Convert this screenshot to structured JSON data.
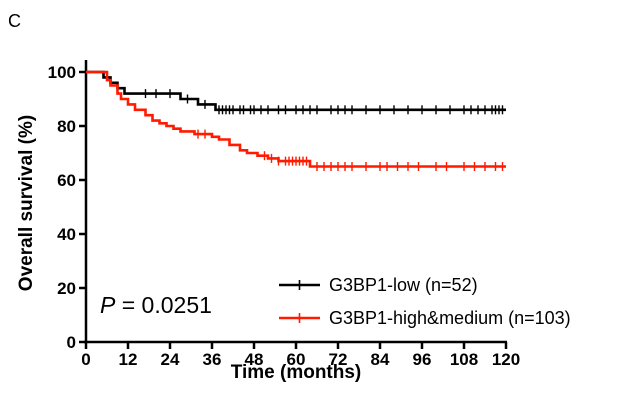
{
  "panel_label": "C",
  "colors": {
    "low": "#000000",
    "high": "#ff1a00",
    "axis": "#000000"
  },
  "chart_data": {
    "type": "line",
    "subtype": "kaplan-meier",
    "title": "",
    "xlabel": "Time (months)",
    "ylabel": "Overall survival (%)",
    "xlim": [
      0,
      120
    ],
    "ylim": [
      0,
      100
    ],
    "xticks": [
      0,
      12,
      24,
      36,
      48,
      60,
      72,
      84,
      96,
      108,
      120
    ],
    "yticks": [
      0,
      20,
      40,
      60,
      80,
      100
    ],
    "grid": false,
    "legend_position": "bottom-right",
    "annotation": {
      "italic": "P",
      "rest": " = 0.0251"
    },
    "series": [
      {
        "name": "G3BP1-low (n=52)",
        "color": "#000000",
        "steps": [
          [
            0,
            100
          ],
          [
            5,
            98
          ],
          [
            7,
            96
          ],
          [
            9,
            94
          ],
          [
            11,
            92
          ],
          [
            27,
            90
          ],
          [
            32,
            88
          ],
          [
            37,
            86
          ],
          [
            120,
            86
          ]
        ],
        "censored": [
          9,
          17,
          20,
          24,
          29,
          34,
          38,
          39,
          40,
          41,
          42,
          44,
          45,
          47,
          48,
          50,
          52,
          55,
          57,
          60,
          62,
          64,
          66,
          70,
          72,
          74,
          76,
          80,
          84,
          88,
          92,
          96,
          100,
          104,
          108,
          110,
          112,
          114,
          116,
          117,
          118,
          119
        ]
      },
      {
        "name": "G3BP1-high&medium (n=103)",
        "color": "#ff1a00",
        "steps": [
          [
            0,
            100
          ],
          [
            6,
            97
          ],
          [
            7,
            95
          ],
          [
            9,
            92
          ],
          [
            10,
            90
          ],
          [
            12,
            88
          ],
          [
            14,
            86
          ],
          [
            17,
            84
          ],
          [
            19,
            82
          ],
          [
            21,
            81
          ],
          [
            23,
            80
          ],
          [
            25,
            79
          ],
          [
            27,
            78
          ],
          [
            31,
            77
          ],
          [
            36,
            76
          ],
          [
            38,
            75
          ],
          [
            41,
            73
          ],
          [
            44,
            71
          ],
          [
            46,
            70
          ],
          [
            49,
            69
          ],
          [
            52,
            68
          ],
          [
            55,
            67
          ],
          [
            64,
            65
          ],
          [
            120,
            65
          ]
        ],
        "censored": [
          32,
          34,
          51,
          53,
          55,
          57,
          58,
          59,
          60,
          61,
          62,
          63,
          66,
          68,
          70,
          72,
          74,
          76,
          80,
          84,
          86,
          89,
          92,
          95,
          100,
          103,
          108,
          111,
          114,
          117,
          119
        ]
      }
    ]
  }
}
